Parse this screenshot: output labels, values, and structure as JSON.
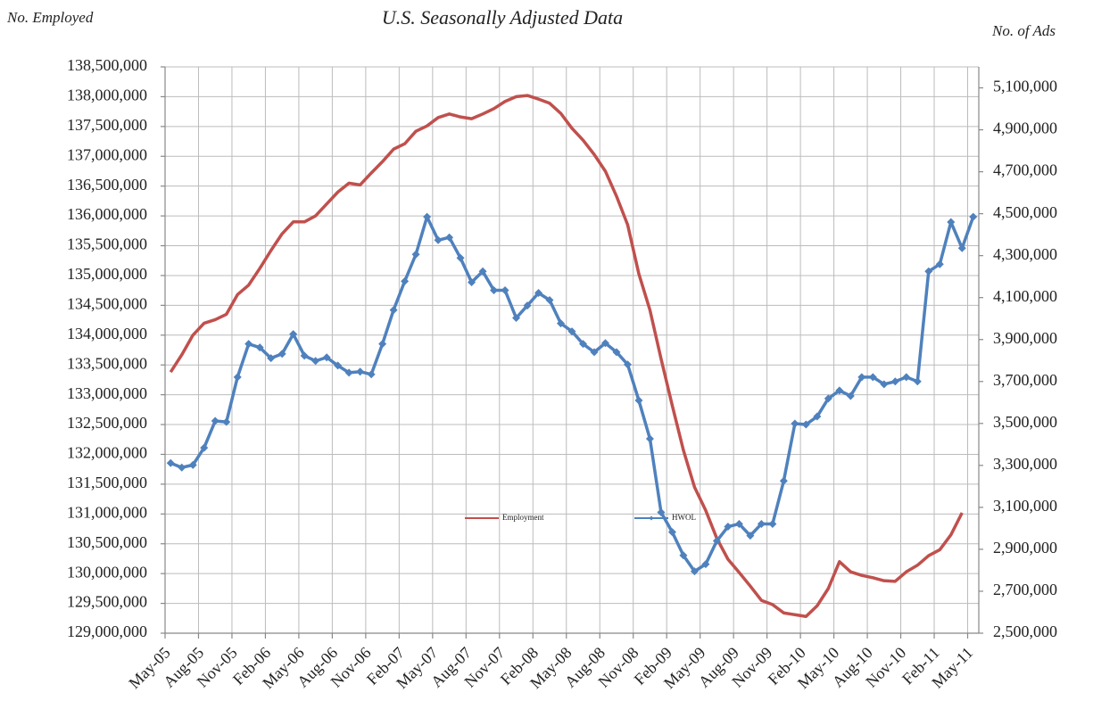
{
  "chart_data": {
    "type": "line",
    "title": "U.S. Seasonally Adjusted Data",
    "y_label": "No. Employed",
    "y2_label": "No. of Ads",
    "categories": [
      "May-05",
      null,
      null,
      "Aug-05",
      null,
      null,
      "Nov-05",
      null,
      null,
      "Feb-06",
      null,
      null,
      "May-06",
      null,
      null,
      "Aug-06",
      null,
      null,
      "Nov-06",
      null,
      null,
      "Feb-07",
      null,
      null,
      "May-07",
      null,
      null,
      "Aug-07",
      null,
      null,
      "Nov-07",
      null,
      null,
      "Feb-08",
      null,
      null,
      "May-08",
      null,
      null,
      "Aug-08",
      null,
      null,
      "Nov-08",
      null,
      null,
      "Feb-09",
      null,
      null,
      "May-09",
      null,
      null,
      "Aug-09",
      null,
      null,
      "Nov-09",
      null,
      null,
      "Feb-10",
      null,
      null,
      "May-10",
      null,
      null,
      "Aug-10",
      null,
      null,
      "Nov-10",
      null,
      null,
      "Feb-11",
      null,
      null,
      "May-11"
    ],
    "series": [
      {
        "name": "Employment",
        "color": "#c0504d",
        "axis": "y",
        "marker": false,
        "values": [
          133380000,
          133670000,
          134000000,
          134200000,
          134260000,
          134350000,
          134680000,
          134840000,
          135120000,
          135420000,
          135700000,
          135900000,
          135900000,
          136000000,
          136200000,
          136400000,
          136550000,
          136520000,
          136720000,
          136910000,
          137120000,
          137210000,
          137420000,
          137510000,
          137650000,
          137710000,
          137660000,
          137630000,
          137710000,
          137800000,
          137920000,
          138000000,
          138020000,
          137960000,
          137890000,
          137720000,
          137470000,
          137270000,
          137030000,
          136750000,
          136330000,
          135850000,
          135030000,
          134420000,
          133600000,
          132820000,
          132070000,
          131450000,
          131060000,
          130590000,
          130240000,
          130020000,
          129790000,
          129550000,
          129480000,
          129340000,
          129310000,
          129280000,
          129460000,
          129750000,
          130200000,
          130030000,
          129970000,
          129930000,
          129880000,
          129870000,
          130030000,
          130140000,
          130300000,
          130400000,
          130650000,
          131020000,
          null
        ]
      },
      {
        "name": "HWOL",
        "color": "#4f81bd",
        "axis": "y2",
        "marker": true,
        "values": [
          3311000,
          3290000,
          3302000,
          3384000,
          3512000,
          3507000,
          3721000,
          3879000,
          3862000,
          3811000,
          3832000,
          3926000,
          3823000,
          3798000,
          3815000,
          3776000,
          3742000,
          3747000,
          3734000,
          3879000,
          4041000,
          4178000,
          4306000,
          4485000,
          4374000,
          4387000,
          4289000,
          4173000,
          4225000,
          4135000,
          4135000,
          4003000,
          4062000,
          4122000,
          4088000,
          3977000,
          3939000,
          3879000,
          3840000,
          3883000,
          3840000,
          3781000,
          3610000,
          3427000,
          3076000,
          2982000,
          2871000,
          2795000,
          2829000,
          2940000,
          3008000,
          3021000,
          2965000,
          3021000,
          3021000,
          3226000,
          3499000,
          3495000,
          3533000,
          3619000,
          3657000,
          3631000,
          3721000,
          3721000,
          3687000,
          3700000,
          3721000,
          3700000,
          4225000,
          4259000,
          4460000,
          4336000,
          4485000
        ]
      }
    ],
    "ylim": [
      129000000,
      138500000
    ],
    "yticks": [
      {
        "value": 129000000,
        "label": "129,000,000"
      },
      {
        "value": 129500000,
        "label": "129,500,000"
      },
      {
        "value": 130000000,
        "label": "130,000,000"
      },
      {
        "value": 130500000,
        "label": "130,500,000"
      },
      {
        "value": 131000000,
        "label": "131,000,000"
      },
      {
        "value": 131500000,
        "label": "131,500,000"
      },
      {
        "value": 132000000,
        "label": "132,000,000"
      },
      {
        "value": 132500000,
        "label": "132,500,000"
      },
      {
        "value": 133000000,
        "label": "133,000,000"
      },
      {
        "value": 133500000,
        "label": "133,500,000"
      },
      {
        "value": 134000000,
        "label": "134,000,000"
      },
      {
        "value": 134500000,
        "label": "134,500,000"
      },
      {
        "value": 135000000,
        "label": "135,000,000"
      },
      {
        "value": 135500000,
        "label": "135,500,000"
      },
      {
        "value": 136000000,
        "label": "136,000,000"
      },
      {
        "value": 136500000,
        "label": "136,500,000"
      },
      {
        "value": 137000000,
        "label": "137,000,000"
      },
      {
        "value": 137500000,
        "label": "137,500,000"
      },
      {
        "value": 138000000,
        "label": "138,000,000"
      },
      {
        "value": 138500000,
        "label": "138,500,000"
      }
    ],
    "y2lim": [
      2500000,
      5200000
    ],
    "y2ticks": [
      {
        "value": 2500000,
        "label": "2,500,000"
      },
      {
        "value": 2700000,
        "label": "2,700,000"
      },
      {
        "value": 2900000,
        "label": "2,900,000"
      },
      {
        "value": 3100000,
        "label": "3,100,000"
      },
      {
        "value": 3300000,
        "label": "3,300,000"
      },
      {
        "value": 3500000,
        "label": "3,500,000"
      },
      {
        "value": 3700000,
        "label": "3,700,000"
      },
      {
        "value": 3900000,
        "label": "3,900,000"
      },
      {
        "value": 4100000,
        "label": "4,100,000"
      },
      {
        "value": 4300000,
        "label": "4,300,000"
      },
      {
        "value": 4500000,
        "label": "4,500,000"
      },
      {
        "value": 4700000,
        "label": "4,700,000"
      },
      {
        "value": 4900000,
        "label": "4,900,000"
      },
      {
        "value": 5100000,
        "label": "5,100,000"
      }
    ],
    "grid": true,
    "legend": "center"
  }
}
